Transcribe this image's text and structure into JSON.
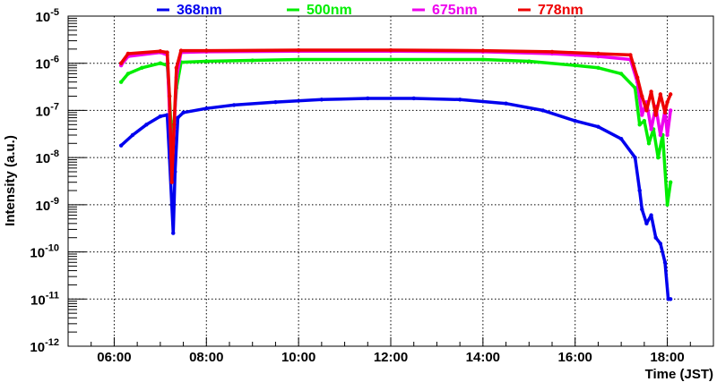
{
  "chart_data": {
    "type": "scatter",
    "title": "",
    "xlabel": "Time (JST)",
    "ylabel": "Intensity (a.u.)",
    "xlim": [
      5.0,
      19.0
    ],
    "ylim": [
      1e-12,
      1e-05
    ],
    "yscale": "log",
    "grid": true,
    "legend_position": "top",
    "x_ticks": [
      6,
      8,
      10,
      12,
      14,
      16,
      18
    ],
    "x_tick_labels": [
      "06:00",
      "08:00",
      "10:00",
      "12:00",
      "14:00",
      "16:00",
      "18:00"
    ],
    "y_ticks": [
      -12,
      -11,
      -10,
      -9,
      -8,
      -7,
      -6,
      -5
    ],
    "y_tick_base": "10",
    "series": [
      {
        "name": "368nm",
        "color": "#0000ee",
        "x": [
          6.15,
          6.4,
          6.7,
          7.0,
          7.15,
          7.2,
          7.25,
          7.28,
          7.32,
          7.38,
          7.5,
          8.0,
          8.6,
          9.5,
          10.5,
          11.5,
          12.5,
          13.5,
          14.5,
          15.3,
          16.0,
          16.5,
          17.0,
          17.3,
          17.4,
          17.45,
          17.55,
          17.65,
          17.75,
          17.85,
          17.95,
          18.02,
          18.07
        ],
        "y": [
          1.8e-08,
          3e-08,
          5e-08,
          7.5e-08,
          8e-08,
          1e-08,
          1e-09,
          2.5e-10,
          5e-09,
          7e-08,
          9e-08,
          1.1e-07,
          1.3e-07,
          1.5e-07,
          1.7e-07,
          1.8e-07,
          1.8e-07,
          1.7e-07,
          1.4e-07,
          1e-07,
          6e-08,
          4.5e-08,
          2.5e-08,
          1e-08,
          2e-09,
          8e-10,
          4e-10,
          6e-10,
          2e-10,
          1.5e-10,
          6e-11,
          1e-11,
          1e-11
        ]
      },
      {
        "name": "500nm",
        "color": "#00ee00",
        "x": [
          6.15,
          6.3,
          6.6,
          7.0,
          7.15,
          7.2,
          7.25,
          7.3,
          7.35,
          7.45,
          8.0,
          9.0,
          10.0,
          12.0,
          14.0,
          15.0,
          16.0,
          16.5,
          17.0,
          17.3,
          17.4,
          17.5,
          17.6,
          17.7,
          17.8,
          17.9,
          18.0,
          18.07
        ],
        "y": [
          4e-07,
          6e-07,
          8e-07,
          1e-06,
          9e-07,
          2e-07,
          2e-08,
          6e-08,
          3e-07,
          1.05e-06,
          1.1e-06,
          1.15e-06,
          1.2e-06,
          1.2e-06,
          1.2e-06,
          1.1e-06,
          9e-07,
          8e-07,
          6e-07,
          3e-07,
          5e-08,
          6e-08,
          2e-08,
          4e-08,
          1e-08,
          3e-08,
          1e-09,
          3e-09
        ]
      },
      {
        "name": "675nm",
        "color": "#ee00ee",
        "x": [
          6.15,
          6.3,
          7.0,
          7.15,
          7.2,
          7.25,
          7.3,
          7.35,
          7.45,
          8.0,
          10.0,
          12.0,
          14.0,
          15.5,
          16.5,
          17.2,
          17.35,
          17.45,
          17.55,
          17.65,
          17.75,
          17.85,
          17.95,
          18.0,
          18.07
        ],
        "y": [
          9e-07,
          1.4e-06,
          1.7e-06,
          1.5e-06,
          1e-07,
          5e-09,
          4e-08,
          5e-07,
          1.7e-06,
          1.75e-06,
          1.8e-06,
          1.8e-06,
          1.75e-06,
          1.6e-06,
          1.4e-06,
          1.2e-06,
          4e-07,
          8e-08,
          1.5e-07,
          4e-08,
          1.2e-07,
          3e-08,
          1e-07,
          3e-08,
          1e-07
        ]
      },
      {
        "name": "778nm",
        "color": "#ee0000",
        "x": [
          6.15,
          6.3,
          7.0,
          7.15,
          7.2,
          7.25,
          7.3,
          7.35,
          7.45,
          8.0,
          10.0,
          12.0,
          14.0,
          15.5,
          16.5,
          17.2,
          17.35,
          17.45,
          17.55,
          17.65,
          17.75,
          17.85,
          17.95,
          18.0,
          18.07
        ],
        "y": [
          1e-06,
          1.6e-06,
          1.8e-06,
          1.7e-06,
          2e-07,
          3e-09,
          5e-08,
          8e-07,
          1.85e-06,
          1.85e-06,
          1.9e-06,
          1.9e-06,
          1.85e-06,
          1.75e-06,
          1.6e-06,
          1.5e-06,
          5e-07,
          2e-07,
          1e-07,
          2.5e-07,
          8e-08,
          2.2e-07,
          9e-08,
          1.5e-07,
          2.2e-07
        ]
      }
    ]
  }
}
